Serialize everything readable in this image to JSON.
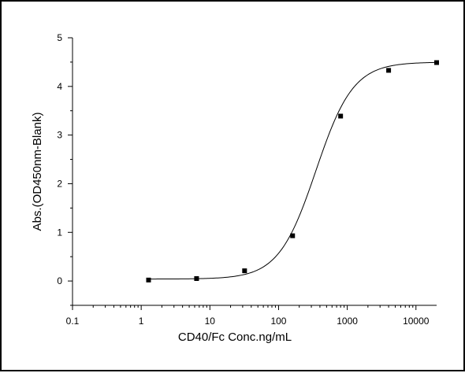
{
  "chart_data": {
    "type": "scatter",
    "xlabel": "CD40/Fc Conc.ng/mL",
    "ylabel": "Abs.(OD450nm-Blank)",
    "xscale": "log",
    "xlim": [
      0.1,
      20000
    ],
    "ylim": [
      -0.5,
      5
    ],
    "x_ticks": [
      0.1,
      1,
      10,
      100,
      1000,
      10000
    ],
    "x_tick_labels": [
      "0.1",
      "1",
      "10",
      "100",
      "1000",
      "10000"
    ],
    "y_ticks": [
      0,
      1,
      2,
      3,
      4,
      5
    ],
    "y_tick_labels": [
      "0",
      "1",
      "2",
      "3",
      "4",
      "5"
    ],
    "grid": false,
    "legend": "none",
    "series": [
      {
        "marker": "square",
        "points": [
          {
            "x": 1.28,
            "y": 0.02
          },
          {
            "x": 6.4,
            "y": 0.05
          },
          {
            "x": 32,
            "y": 0.21
          },
          {
            "x": 160,
            "y": 0.93
          },
          {
            "x": 800,
            "y": 3.39
          },
          {
            "x": 4000,
            "y": 4.33
          },
          {
            "x": 20000,
            "y": 4.49
          }
        ]
      }
    ],
    "fit_curve": {
      "model": "4PL",
      "bottom": 0.04,
      "top": 4.5,
      "ec50": 350,
      "hill": 1.6
    },
    "colors": {
      "line": "#000000",
      "marker": "#000000",
      "background": "#ffffff"
    }
  }
}
